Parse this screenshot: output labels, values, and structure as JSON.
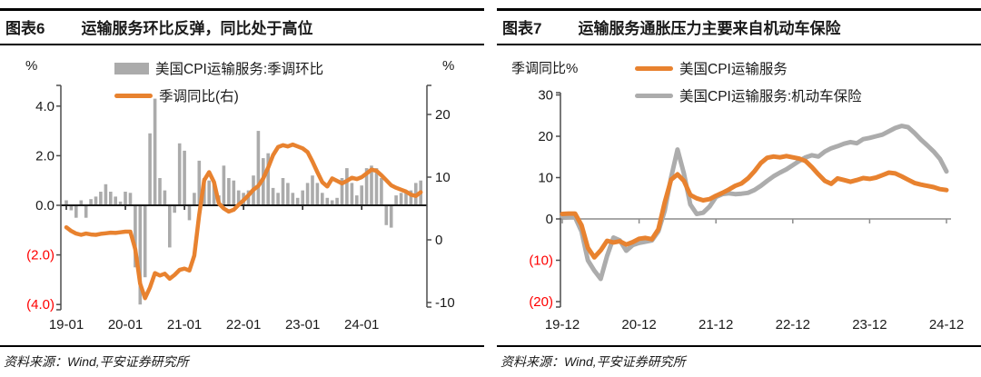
{
  "colors": {
    "orange": "#E8822F",
    "gray_line": "#ACACAC",
    "gray_bar": "#ABABAB",
    "red": "#FF0000",
    "axis": "#4d4d4d",
    "zero_dark": "#1a1a1a",
    "zero_gray": "#8c8c8c",
    "text": "#1a1a1a"
  },
  "panels": [
    {
      "title_label": "图表6",
      "title": "运输服务环比反弹，同比处于高位",
      "source": "资料来源：Wind,平安证券研究所"
    },
    {
      "title_label": "图表7",
      "title": "运输服务通胀压力主要来自机动车保险",
      "source": "资料来源：Wind,平安证券研究所"
    }
  ],
  "chart_data": [
    {
      "type": "bar",
      "combo": "bar+line",
      "x_interval": "monthly",
      "x_range": [
        "19-01",
        "25-01"
      ],
      "x_tick_labels": [
        "19-01",
        "20-01",
        "21-01",
        "22-01",
        "23-01",
        "24-01"
      ],
      "left_axis": {
        "unit": "%",
        "tick_values": [
          4,
          2,
          0,
          -2,
          -4
        ],
        "tick_labels": [
          "4.0",
          "2.0",
          "0.0",
          "(2.0)",
          "(4.0)"
        ],
        "range": [
          -4.8,
          4.8
        ]
      },
      "right_axis": {
        "unit": "%",
        "tick_values": [
          20,
          10,
          0,
          -10
        ],
        "tick_labels": [
          "20",
          "10",
          "0",
          "-10"
        ],
        "range": [
          -11,
          25
        ]
      },
      "grid": false,
      "legend_position": "top-center",
      "series": [
        {
          "name": "美国CPI运输服务:季调环比",
          "type": "bar",
          "axis": "left",
          "values": [
            0.2,
            -0.2,
            -0.5,
            0.2,
            -0.5,
            0.25,
            0.35,
            0.55,
            0.85,
            0.55,
            0.35,
            0.15,
            0.55,
            0.5,
            -2.5,
            -4.0,
            -2.9,
            2.9,
            4.3,
            1.1,
            0.6,
            -1.7,
            -0.3,
            2.5,
            2.2,
            -0.6,
            0.5,
            1.8,
            1.1,
            1.0,
            0.9,
            0.4,
            1.6,
            1.1,
            1.0,
            0.6,
            0.5,
            0.6,
            1.2,
            3.0,
            1.9,
            2.1,
            0.7,
            0.5,
            1.1,
            0.9,
            0.5,
            0.3,
            0.6,
            0.9,
            1.2,
            0.9,
            0.5,
            0.3,
            0.2,
            0.3,
            1.1,
            1.5,
            0.9,
            0.4,
            0.8,
            1.5,
            1.6,
            1.5,
            1.1,
            -0.8,
            -0.9,
            0.4,
            0.5,
            0.6,
            0.6,
            0.9,
            1.0
          ]
        },
        {
          "name": "季调同比(右)",
          "type": "line",
          "axis": "right",
          "values": [
            2.0,
            1.4,
            1.0,
            0.8,
            1.0,
            0.85,
            0.8,
            0.95,
            1.05,
            1.15,
            1.1,
            1.2,
            1.3,
            1.3,
            -1.5,
            -7.0,
            -9.3,
            -7.6,
            -5.3,
            -5.7,
            -5.4,
            -6.2,
            -5.6,
            -4.8,
            -4.6,
            -4.9,
            -2.5,
            4.0,
            9.5,
            10.8,
            9.2,
            5.8,
            5.0,
            4.5,
            4.8,
            5.6,
            6.3,
            7.1,
            8.0,
            8.6,
            9.8,
            11.5,
            13.5,
            14.8,
            15.1,
            14.9,
            15.2,
            14.9,
            14.6,
            14.0,
            12.5,
            10.8,
            9.2,
            8.5,
            9.8,
            9.4,
            9.0,
            9.4,
            9.9,
            9.7,
            10.0,
            10.6,
            11.2,
            11.0,
            10.3,
            9.5,
            8.7,
            8.3,
            8.0,
            7.7,
            7.2,
            7.0,
            7.6
          ]
        }
      ]
    },
    {
      "type": "line",
      "x_interval": "monthly",
      "x_range": [
        "19-12",
        "24-12"
      ],
      "x_tick_labels": [
        "19-12",
        "20-12",
        "21-12",
        "22-12",
        "23-12",
        "24-12"
      ],
      "y_axis": {
        "label": "季调同比%",
        "tick_values": [
          30,
          20,
          10,
          0,
          -10,
          -20
        ],
        "tick_labels": [
          "30",
          "20",
          "10",
          "0",
          "(10)",
          "(20)"
        ],
        "range": [
          -21,
          31
        ]
      },
      "grid": false,
      "legend_position": "top-right",
      "series": [
        {
          "name": "美国CPI运输服务",
          "type": "line",
          "values": [
            1.2,
            1.3,
            1.3,
            -1.5,
            -7.0,
            -9.3,
            -7.6,
            -5.3,
            -5.7,
            -5.4,
            -6.2,
            -5.6,
            -4.8,
            -4.6,
            -4.9,
            -2.5,
            4.0,
            9.5,
            10.8,
            9.2,
            5.8,
            5.0,
            4.5,
            4.8,
            5.6,
            6.3,
            7.1,
            8.0,
            8.6,
            9.8,
            11.5,
            13.5,
            14.8,
            15.1,
            14.9,
            15.2,
            14.9,
            14.6,
            14.0,
            12.5,
            10.8,
            9.2,
            8.5,
            9.8,
            9.4,
            9.0,
            9.4,
            9.9,
            9.7,
            10.0,
            10.6,
            11.2,
            11.0,
            10.3,
            9.5,
            8.7,
            8.3,
            8.0,
            7.7,
            7.2,
            7.0
          ]
        },
        {
          "name": "美国CPI运输服务:机动车保险",
          "type": "line",
          "values": [
            0.6,
            0.5,
            0.4,
            -3.0,
            -10.0,
            -12.5,
            -14.5,
            -9.0,
            -4.5,
            -5.2,
            -7.7,
            -6.3,
            -5.8,
            -5.5,
            -5.2,
            -3.0,
            2.0,
            10.0,
            16.8,
            11.0,
            3.5,
            1.2,
            1.5,
            3.0,
            5.3,
            6.0,
            6.2,
            6.0,
            6.1,
            6.3,
            7.0,
            8.0,
            9.2,
            10.3,
            11.2,
            12.0,
            13.0,
            14.0,
            14.9,
            15.4,
            15.1,
            16.3,
            17.1,
            17.6,
            18.2,
            18.6,
            18.3,
            19.3,
            19.6,
            20.0,
            20.4,
            21.2,
            22.0,
            22.5,
            22.2,
            20.8,
            19.2,
            17.8,
            16.3,
            14.5,
            11.5
          ]
        }
      ]
    }
  ]
}
